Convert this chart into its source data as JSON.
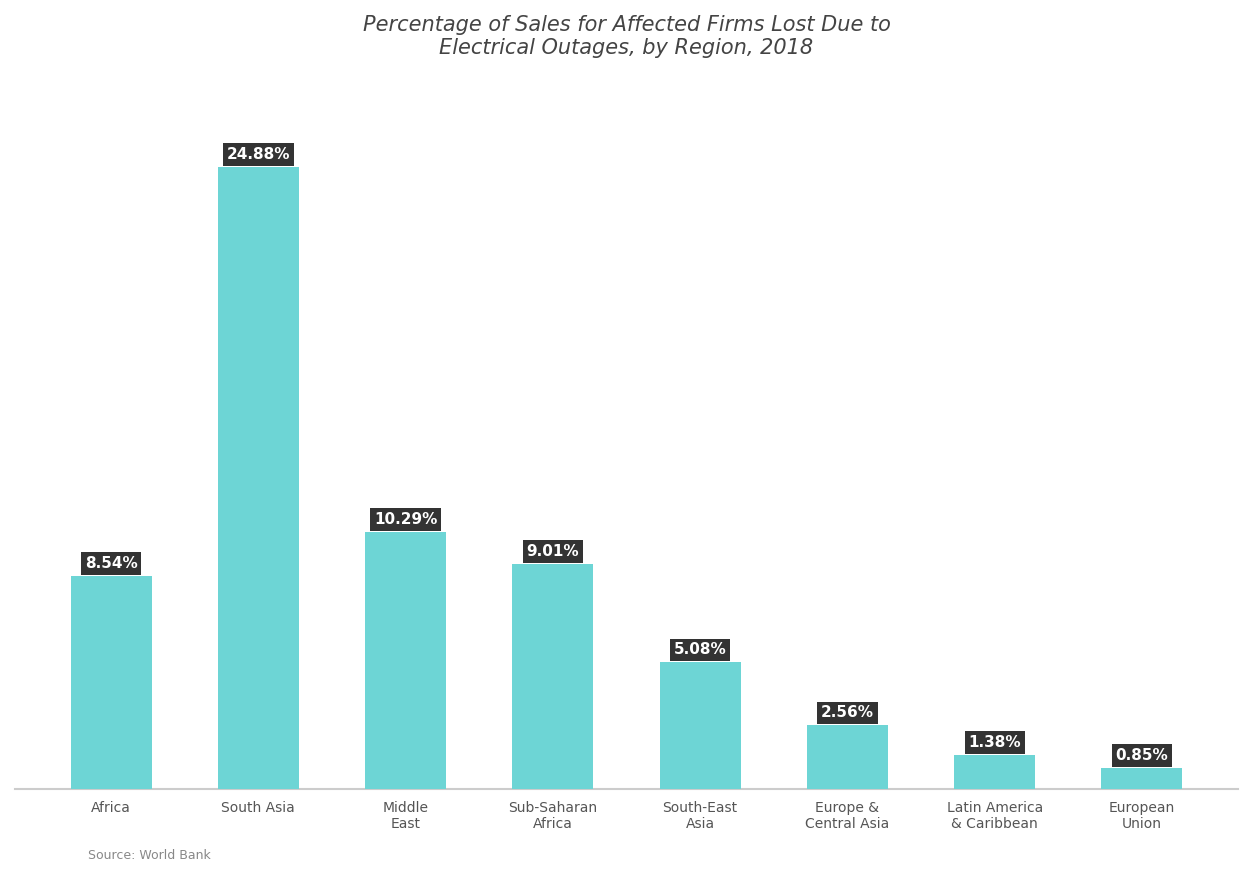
{
  "title_line1": "Percentage of Sales for Affected Firms Lost Due to",
  "title_line2": "Electrical Outages, by Region, 2018",
  "categories": [
    "Africa",
    "South Asia",
    "Middle\nEast",
    "Sub-Saharan\nAfrica",
    "South-East\nAsia",
    "Europe &\nCentral Asia",
    "Latin America\n& Caribbean",
    "European\nUnion"
  ],
  "values": [
    8.54,
    24.88,
    10.29,
    9.01,
    5.08,
    2.56,
    1.38,
    0.85
  ],
  "bar_color": "#6DD5D5",
  "background_color": "#ffffff",
  "plot_bg_color": "#ffffff",
  "title_color": "#444444",
  "label_color": "#333333",
  "label_bg_color": "#333333",
  "bar_labels": [
    "8.54%",
    "24.88%",
    "10.29%",
    "9.01%",
    "5.08%",
    "2.56%",
    "1.38%",
    "0.85%"
  ],
  "source_text": "Source: World Bank",
  "ylim": [
    0,
    28
  ],
  "title_fontsize": 15,
  "label_fontsize": 11,
  "tick_fontsize": 10,
  "bottom_line_color": "#aaaaaa"
}
